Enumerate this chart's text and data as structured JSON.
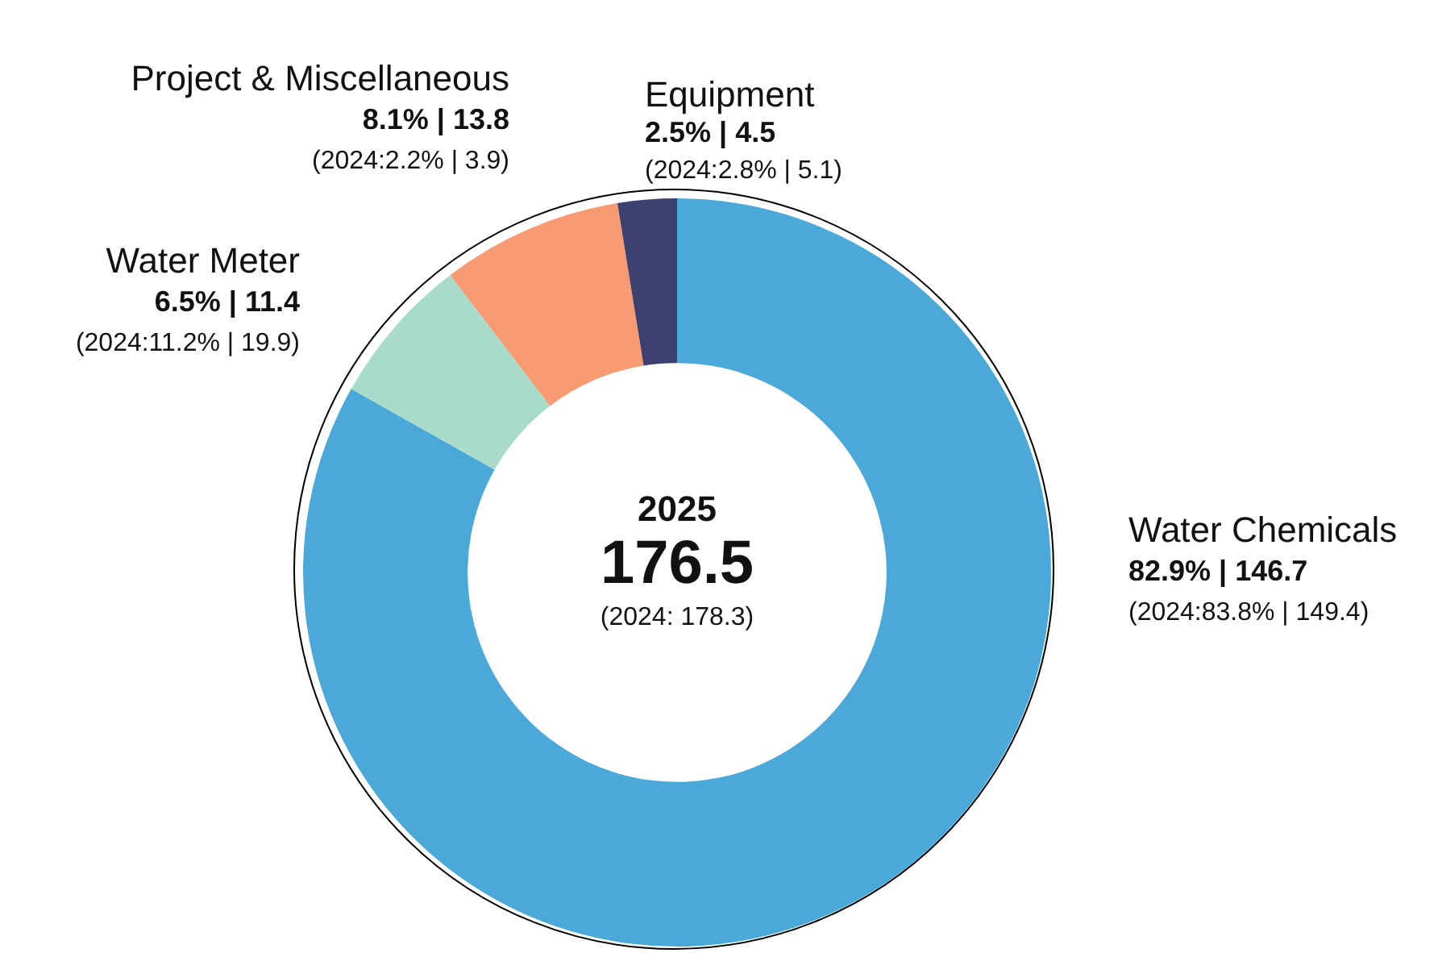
{
  "chart_data": {
    "type": "donut",
    "categories": [
      "Water Chemicals",
      "Water Meter",
      "Project & Miscellaneous",
      "Equipment"
    ],
    "values": [
      146.7,
      11.4,
      13.8,
      4.5
    ],
    "colors": [
      "#4ba9da",
      "#a8dbc9",
      "#f89a72",
      "#3d4170"
    ],
    "value_labels": [
      "82.9% | 146.7",
      "6.5% | 11.4",
      "8.1% | 13.8",
      "2.5% | 4.5"
    ],
    "legend": false,
    "annotations": [
      "2025",
      "176.5",
      "(2024: 178.3)",
      {
        "text": "(2024:83.8% | 149.4)",
        "x": "Water Chemicals"
      },
      {
        "text": "(2024:11.2% | 19.9)",
        "x": "Water Meter"
      },
      {
        "text": "(2024:2.2% | 3.9)",
        "x": "Project & Miscellaneous"
      },
      {
        "text": "(2024:2.8% | 5.1)",
        "x": "Equipment"
      }
    ]
  }
}
